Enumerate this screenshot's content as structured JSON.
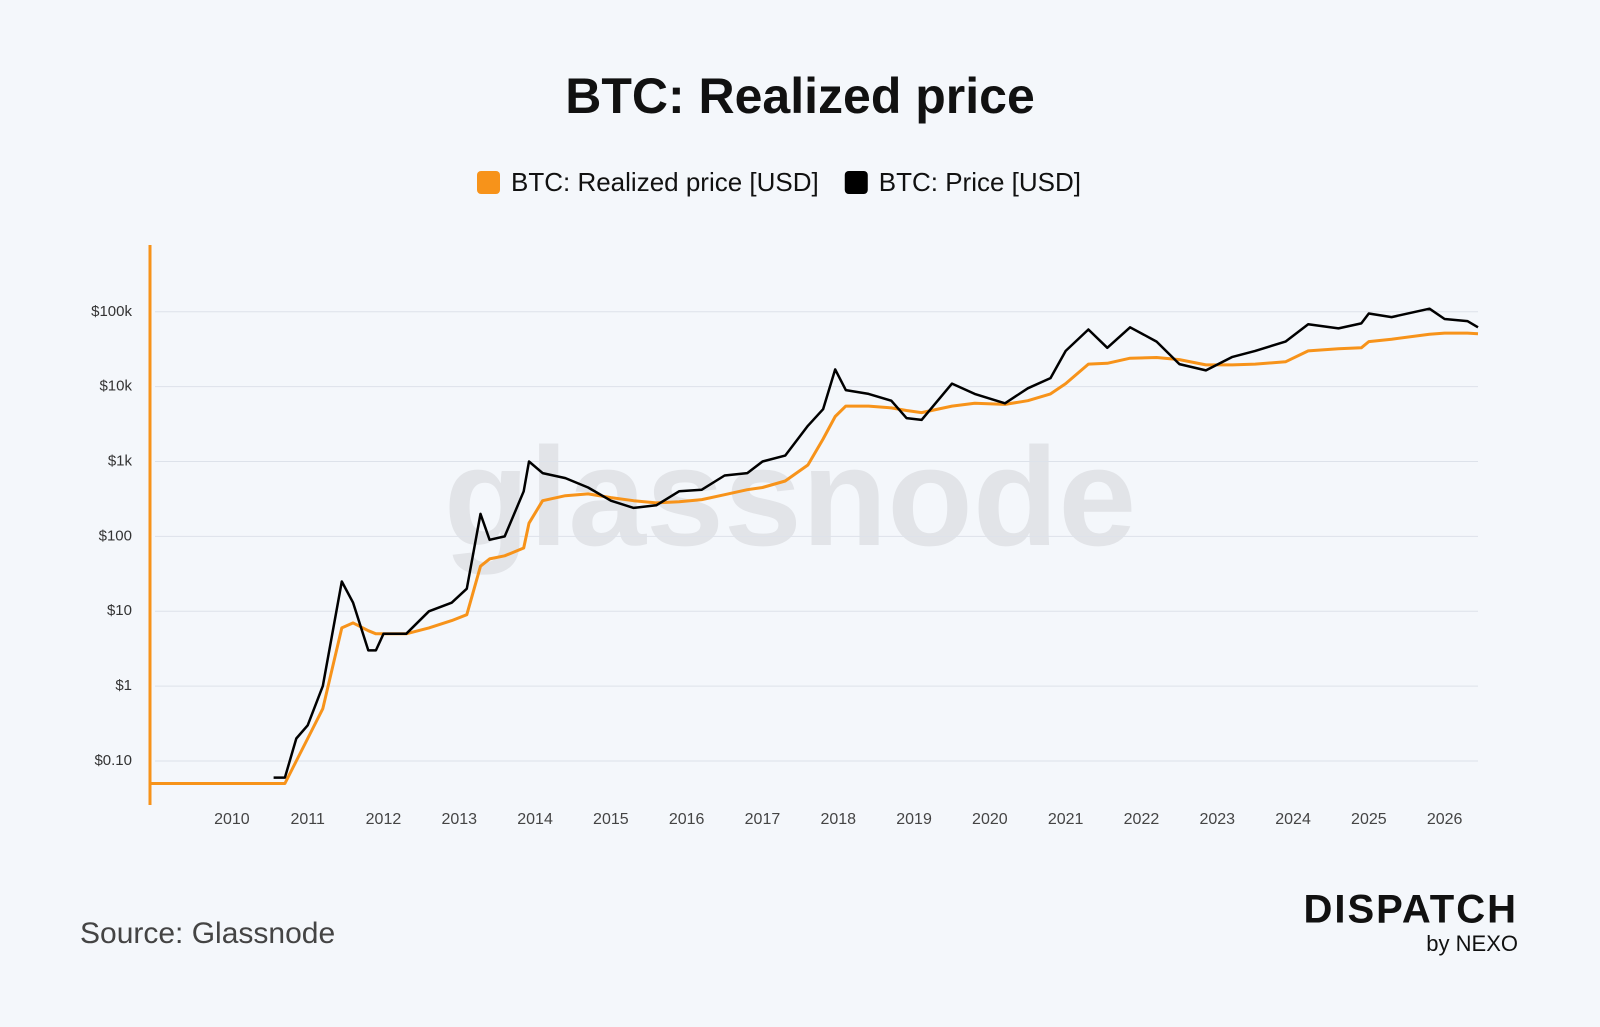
{
  "chart_data": {
    "type": "line",
    "title": "BTC: Realized price",
    "log_y": true,
    "grid": true,
    "legend": "top",
    "watermark": "glassnode",
    "x": [
      2008.92,
      2010.0,
      2010.55,
      2010.7,
      2010.85,
      2011.0,
      2011.2,
      2011.45,
      2011.6,
      2011.8,
      2011.9,
      2012.0,
      2012.3,
      2012.6,
      2012.9,
      2013.1,
      2013.28,
      2013.4,
      2013.6,
      2013.85,
      2013.92,
      2014.1,
      2014.4,
      2014.7,
      2015.0,
      2015.3,
      2015.6,
      2015.9,
      2016.2,
      2016.5,
      2016.8,
      2017.0,
      2017.3,
      2017.6,
      2017.8,
      2017.96,
      2018.1,
      2018.4,
      2018.7,
      2018.9,
      2019.1,
      2019.5,
      2019.8,
      2020.2,
      2020.5,
      2020.8,
      2021.0,
      2021.3,
      2021.55,
      2021.85,
      2022.2,
      2022.5,
      2022.85,
      2023.2,
      2023.5,
      2023.9,
      2024.2,
      2024.6,
      2024.9,
      2025.0,
      2025.3,
      2025.8,
      2026.0,
      2026.3,
      2026.44
    ],
    "series": [
      {
        "name": "BTC: Realized price [USD]",
        "color": "#f7931a",
        "values": [
          0.05,
          0.05,
          0.05,
          0.05,
          0.1,
          0.2,
          0.5,
          6,
          7,
          5.5,
          5,
          5,
          5,
          6,
          7.5,
          9,
          40,
          50,
          55,
          70,
          150,
          300,
          350,
          370,
          330,
          300,
          280,
          290,
          310,
          360,
          420,
          450,
          550,
          900,
          2000,
          4000,
          5500,
          5500,
          5200,
          4800,
          4500,
          5500,
          6000,
          5800,
          6500,
          8000,
          11000,
          20000,
          20500,
          24000,
          24500,
          23000,
          19500,
          19500,
          20000,
          21500,
          30000,
          32000,
          33000,
          40000,
          43000,
          50000,
          52000,
          52000,
          51000
        ]
      },
      {
        "name": "BTC: Price [USD]",
        "color": "#000000",
        "values": [
          null,
          null,
          0.06,
          0.06,
          0.2,
          0.3,
          1,
          25,
          13,
          3,
          3,
          5,
          5,
          10,
          13,
          20,
          200,
          90,
          100,
          400,
          1000,
          700,
          600,
          450,
          300,
          240,
          260,
          400,
          420,
          650,
          700,
          1000,
          1200,
          3000,
          5000,
          17000,
          9000,
          8000,
          6500,
          3800,
          3600,
          11000,
          8000,
          6000,
          9500,
          13000,
          30000,
          58000,
          33000,
          62000,
          40000,
          20000,
          16500,
          25000,
          30000,
          40000,
          68000,
          60000,
          70000,
          95000,
          85000,
          110000,
          80000,
          75000,
          62000
        ]
      }
    ],
    "xlim": [
      2008.92,
      2026.44
    ],
    "xticks": [
      2010,
      2011,
      2012,
      2013,
      2014,
      2015,
      2016,
      2017,
      2018,
      2019,
      2020,
      2021,
      2022,
      2023,
      2024,
      2025,
      2026
    ],
    "ylim": [
      0.041,
      780000
    ],
    "yticks": [
      {
        "value": 0.1,
        "label": "$0.10"
      },
      {
        "value": 1,
        "label": "$1"
      },
      {
        "value": 10,
        "label": "$10"
      },
      {
        "value": 100,
        "label": "$100"
      },
      {
        "value": 1000,
        "label": "$1k"
      },
      {
        "value": 10000,
        "label": "$10k"
      },
      {
        "value": 100000,
        "label": "$100k"
      }
    ]
  },
  "source": "Source: Glassnode",
  "brand": {
    "name": "DISPATCH",
    "sub": "by NEXO"
  }
}
